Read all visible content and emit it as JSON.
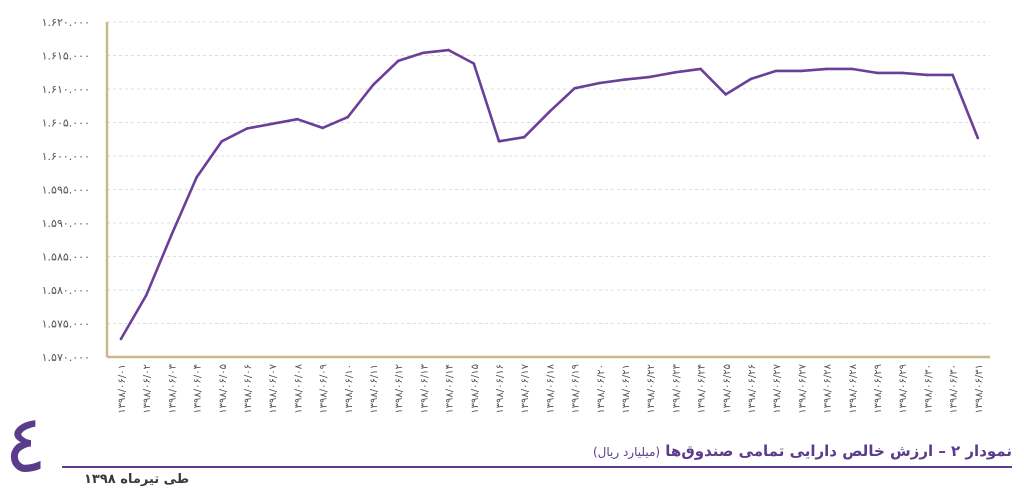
{
  "chart_data": {
    "type": "line",
    "x": [
      "۱۳۹۸/۰۶/۰۱",
      "۱۳۹۸/۰۶/۰۲",
      "۱۳۹۸/۰۶/۰۳",
      "۱۳۹۸/۰۶/۰۴",
      "۱۳۹۸/۰۶/۰۵",
      "۱۳۹۸/۰۶/۰۶",
      "۱۳۹۸/۰۶/۰۷",
      "۱۳۹۸/۰۶/۰۸",
      "۱۳۹۸/۰۶/۰۹",
      "۱۳۹۸/۰۶/۱۰",
      "۱۳۹۸/۰۶/۱۱",
      "۱۳۹۸/۰۶/۱۲",
      "۱۳۹۸/۰۶/۱۳",
      "۱۳۹۸/۰۶/۱۴",
      "۱۳۹۸/۰۶/۱۵",
      "۱۳۹۸/۰۶/۱۶",
      "۱۳۹۸/۰۶/۱۷",
      "۱۳۹۸/۰۶/۱۸",
      "۱۳۹۸/۰۶/۱۹",
      "۱۳۹۸/۰۶/۲۰",
      "۱۳۹۸/۰۶/۲۱",
      "۱۳۹۸/۰۶/۲۲",
      "۱۳۹۸/۰۶/۲۳",
      "۱۳۹۸/۰۶/۲۴",
      "۱۳۹۸/۰۶/۲۵",
      "۱۳۹۸/۰۶/۲۶",
      "۱۳۹۸/۰۶/۲۷",
      "۱۳۹۸/۰۶/۲۷",
      "۱۳۹۸/۰۶/۲۸",
      "۱۳۹۸/۰۶/۲۸",
      "۱۳۹۸/۰۶/۲۹",
      "۱۳۹۸/۰۶/۲۹",
      "۱۳۹۸/۰۶/۳۰",
      "۱۳۹۸/۰۶/۳۰",
      "۱۳۹۸/۰۶/۳۱"
    ],
    "series": [
      {
        "values": [
          1572700,
          1579200,
          1588200,
          1596800,
          1602200,
          1604100,
          1604800,
          1605500,
          1604200,
          1605800,
          1610600,
          1614200,
          1615400,
          1615800,
          1613800,
          1602200,
          1602800,
          1606600,
          1610100,
          1610900,
          1611400,
          1611800,
          1612500,
          1613000,
          1609200,
          1611500,
          1612700,
          1612700,
          1613000,
          1613000,
          1612400,
          1612400,
          1612100,
          1612100,
          1602700
        ]
      }
    ],
    "ylim": [
      1570000,
      1620000
    ],
    "yticks": [
      1570000,
      1575000,
      1580000,
      1585000,
      1590000,
      1595000,
      1600000,
      1605000,
      1610000,
      1615000,
      1620000
    ],
    "ytick_labels": [
      "۱.۵۷۰.۰۰۰",
      "۱.۵۷۵.۰۰۰",
      "۱.۵۸۰.۰۰۰",
      "۱.۵۸۵.۰۰۰",
      "۱.۵۹۰.۰۰۰",
      "۱.۵۹۵.۰۰۰",
      "۱.۶۰۰.۰۰۰",
      "۱.۶۰۵.۰۰۰",
      "۱.۶۱۰.۰۰۰",
      "۱.۶۱۵.۰۰۰",
      "۱.۶۲۰.۰۰۰"
    ],
    "grid": true,
    "title": "",
    "xlabel": "",
    "ylabel": ""
  },
  "caption": {
    "title": "نمودار ۲ – ارزش خالص دارایی تمامی صندوق‌ها",
    "unit": "(میلیارد ریال)",
    "subtitle": "طی تیرماه ۱۳۹۸"
  },
  "page_number": "٤",
  "colors": {
    "line": "#6a3f98",
    "axis": "#c9b98a",
    "grid": "#dddddd",
    "accent": "#5b3b8c"
  }
}
